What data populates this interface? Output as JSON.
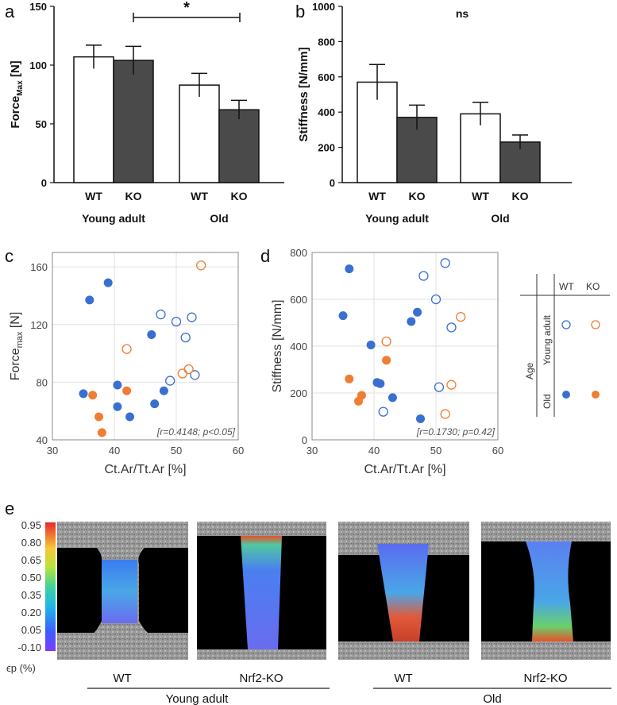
{
  "panels": {
    "a": "a",
    "b": "b",
    "c": "c",
    "d": "d",
    "e": "e"
  },
  "colors": {
    "white_bar": "#ffffff",
    "black_bar": "#4a4a4a",
    "wt": "#3a6fd2",
    "ko": "#ef7d32"
  },
  "chart_data": [
    {
      "id": "a",
      "type": "bar",
      "ylabel": "Force",
      "ylabel_sub": "Max",
      "ylabel_unit": " [N]",
      "ylim": [
        0,
        150
      ],
      "yticks": [
        "0",
        "50",
        "100",
        "150"
      ],
      "categories": [
        "WT",
        "KO",
        "WT",
        "KO"
      ],
      "groups": [
        "Young adult",
        "Old"
      ],
      "values": [
        107,
        104,
        83,
        62
      ],
      "errors": [
        10,
        12,
        10,
        8
      ],
      "fills": [
        "white",
        "dark",
        "white",
        "dark"
      ],
      "significance": "*"
    },
    {
      "id": "b",
      "type": "bar",
      "ylabel": "Stiffness [N/mm]",
      "ylim": [
        0,
        1000
      ],
      "yticks": [
        "0",
        "200",
        "400",
        "600",
        "800",
        "1000"
      ],
      "categories": [
        "WT",
        "KO",
        "WT",
        "KO"
      ],
      "groups": [
        "Young adult",
        "Old"
      ],
      "values": [
        570,
        370,
        390,
        230
      ],
      "errors": [
        100,
        70,
        65,
        40
      ],
      "fills": [
        "white",
        "dark",
        "white",
        "dark"
      ],
      "significance": "ns"
    },
    {
      "id": "c",
      "type": "scatter",
      "xlabel": "Ct.Ar/Tt.Ar [%]",
      "ylabel": "Force",
      "ylabel_sub": "max",
      "ylabel_unit": " [N]",
      "xlim": [
        30,
        60
      ],
      "ylim": [
        40,
        170
      ],
      "xticks": [
        "30",
        "40",
        "50",
        "60"
      ],
      "yticks": [
        "40",
        "80",
        "120",
        "160"
      ],
      "annotation": "[r=0.4148; p<0.05]",
      "series": [
        {
          "group": "Young adult WT",
          "filled": false,
          "color": "wt",
          "x": [
            47.5,
            50,
            51.5,
            52.5,
            49,
            53
          ],
          "y": [
            127,
            122,
            111,
            125,
            81,
            85
          ]
        },
        {
          "group": "Young adult KO",
          "filled": false,
          "color": "ko",
          "x": [
            54,
            52,
            51,
            42
          ],
          "y": [
            161,
            89,
            86,
            103
          ]
        },
        {
          "group": "Old WT",
          "filled": true,
          "color": "wt",
          "x": [
            36,
            39,
            35,
            40.5,
            40.5,
            42.5,
            46,
            46.5,
            48
          ],
          "y": [
            137,
            149,
            72,
            78,
            63,
            56,
            113,
            65,
            74
          ]
        },
        {
          "group": "Old KO",
          "filled": true,
          "color": "ko",
          "x": [
            36.5,
            37.5,
            38,
            42
          ],
          "y": [
            71,
            56,
            45,
            74
          ]
        }
      ]
    },
    {
      "id": "d",
      "type": "scatter",
      "xlabel": "Ct.Ar/Tt.Ar [%]",
      "ylabel": "Stiffness [N/mm]",
      "xlim": [
        30,
        60
      ],
      "ylim": [
        0,
        800
      ],
      "xticks": [
        "30",
        "40",
        "50",
        "60"
      ],
      "yticks": [
        "0",
        "200",
        "400",
        "600",
        "800"
      ],
      "annotation": "[r=0.1730; p=0.42]",
      "series": [
        {
          "group": "Young adult WT",
          "filled": false,
          "color": "wt",
          "x": [
            48,
            51.5,
            50,
            52.5,
            50.5,
            41.5
          ],
          "y": [
            700,
            755,
            600,
            480,
            225,
            120
          ]
        },
        {
          "group": "Young adult KO",
          "filled": false,
          "color": "ko",
          "x": [
            54,
            42,
            52.5,
            51.5
          ],
          "y": [
            525,
            420,
            235,
            110
          ]
        },
        {
          "group": "Old WT",
          "filled": true,
          "color": "wt",
          "x": [
            36,
            35,
            46,
            47,
            39.5,
            40.5,
            41,
            43,
            47.5
          ],
          "y": [
            730,
            530,
            505,
            545,
            405,
            245,
            240,
            180,
            90
          ]
        },
        {
          "group": "Old KO",
          "filled": true,
          "color": "ko",
          "x": [
            36,
            38,
            37.5,
            42
          ],
          "y": [
            260,
            190,
            165,
            340
          ]
        }
      ]
    }
  ],
  "legend": {
    "col_wt": "WT",
    "col_ko": "KO",
    "row_title": "Age",
    "row_young": "Young adult",
    "row_old": "Old"
  },
  "panel_e": {
    "colorbar_ticks": [
      "0.95",
      "0.80",
      "0.65",
      "0.50",
      "0.35",
      "0.20",
      "0.05",
      "-0.10"
    ],
    "colorbar_label": "ϵp (%)",
    "labels": [
      "WT",
      "Nrf2-KO",
      "WT",
      "Nrf2-KO"
    ],
    "groups": [
      "Young adult",
      "Old"
    ]
  }
}
